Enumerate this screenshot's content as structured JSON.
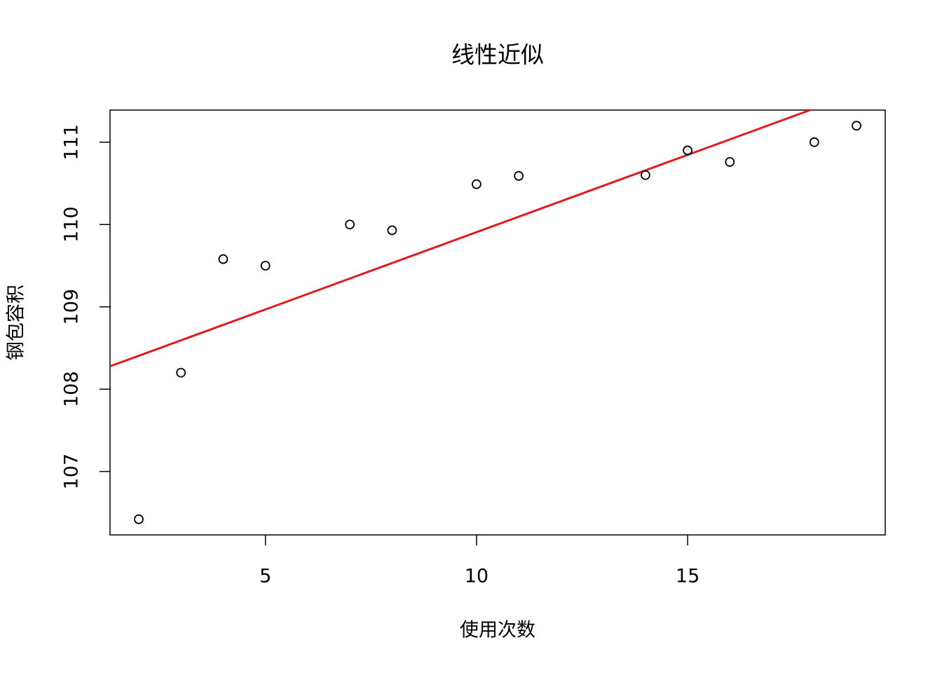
{
  "chart_data": {
    "type": "scatter",
    "title": "线性近似",
    "x_label": "使用次数",
    "y_label": "钢包容积",
    "x": [
      2,
      3,
      4,
      5,
      7,
      8,
      10,
      11,
      14,
      15,
      16,
      18,
      19
    ],
    "values": [
      106.42,
      108.2,
      109.58,
      109.5,
      110.0,
      109.93,
      110.49,
      110.59,
      110.6,
      110.9,
      110.76,
      111.0,
      111.2
    ],
    "color": "#000000",
    "fit": {
      "intercept": 108.03,
      "slope": 0.1877,
      "color": "#e31a1c"
    },
    "xlim": [
      1.32,
      19.68
    ],
    "xticks": [
      5,
      10,
      15
    ],
    "ylim": [
      106.23,
      111.39
    ],
    "yticks": [
      107,
      108,
      109,
      110,
      111
    ]
  }
}
